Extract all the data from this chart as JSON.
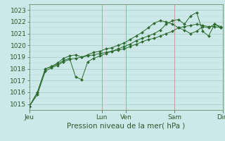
{
  "xlabel": "Pression niveau de la mer( hPa )",
  "bg_color": "#cce8e8",
  "plot_bg_color": "#cce8e8",
  "grid_major_color": "#aacccc",
  "grid_minor_color": "#bbdddd",
  "line_color": "#2d6a2d",
  "marker_color": "#2d6a2d",
  "ymin": 1014.5,
  "ymax": 1023.5,
  "yticks": [
    1015,
    1016,
    1017,
    1018,
    1019,
    1020,
    1021,
    1022,
    1023
  ],
  "day_labels": [
    "Jeu",
    "Lun",
    "Ven",
    "Sam",
    "Dim"
  ],
  "day_positions": [
    0,
    0.375,
    0.5,
    0.75,
    1.0
  ],
  "vline_color": "#cc9999",
  "xlabel_color": "#2d5a2d",
  "tick_color": "#2d5a2d",
  "series1_x": [
    0.0,
    0.042,
    0.083,
    0.115,
    0.146,
    0.177,
    0.208,
    0.24,
    0.271,
    0.302,
    0.333,
    0.365,
    0.396,
    0.427,
    0.458,
    0.49,
    0.521,
    0.552,
    0.583,
    0.615,
    0.646,
    0.677,
    0.708,
    0.74,
    0.771,
    0.802,
    0.833,
    0.865,
    0.896,
    0.927,
    0.958,
    0.99
  ],
  "series1_y": [
    1014.8,
    1015.8,
    1017.8,
    1018.1,
    1018.3,
    1018.6,
    1018.8,
    1018.9,
    1019.0,
    1019.1,
    1019.2,
    1019.3,
    1019.4,
    1019.5,
    1019.6,
    1019.7,
    1019.9,
    1020.1,
    1020.3,
    1020.5,
    1020.6,
    1020.8,
    1021.0,
    1021.2,
    1021.5,
    1021.6,
    1021.7,
    1021.8,
    1021.7,
    1021.6,
    1021.6,
    1021.5
  ],
  "series2_x": [
    0.0,
    0.042,
    0.083,
    0.115,
    0.146,
    0.177,
    0.208,
    0.24,
    0.271,
    0.302,
    0.333,
    0.365,
    0.396,
    0.427,
    0.458,
    0.49,
    0.521,
    0.552,
    0.583,
    0.615,
    0.646,
    0.677,
    0.708,
    0.74,
    0.771,
    0.802,
    0.833,
    0.865,
    0.896,
    0.927,
    0.958,
    0.99
  ],
  "series2_y": [
    1014.8,
    1016.0,
    1018.0,
    1018.2,
    1018.4,
    1018.7,
    1018.9,
    1017.3,
    1017.1,
    1018.6,
    1018.9,
    1019.1,
    1019.3,
    1019.5,
    1019.7,
    1019.9,
    1020.1,
    1020.4,
    1020.6,
    1020.8,
    1021.0,
    1021.3,
    1021.8,
    1022.1,
    1022.2,
    1021.8,
    1022.5,
    1022.8,
    1021.2,
    1020.8,
    1021.8,
    1021.6
  ],
  "series3_x": [
    0.0,
    0.042,
    0.083,
    0.115,
    0.146,
    0.177,
    0.208,
    0.24,
    0.271,
    0.302,
    0.333,
    0.365,
    0.396,
    0.427,
    0.458,
    0.49,
    0.521,
    0.552,
    0.583,
    0.615,
    0.646,
    0.677,
    0.708,
    0.74,
    0.771,
    0.802,
    0.833,
    0.865,
    0.896,
    0.927,
    0.958,
    0.99
  ],
  "series3_y": [
    1014.8,
    1016.0,
    1018.0,
    1018.2,
    1018.5,
    1018.9,
    1019.1,
    1019.2,
    1019.0,
    1019.2,
    1019.4,
    1019.5,
    1019.7,
    1019.8,
    1020.0,
    1020.2,
    1020.5,
    1020.8,
    1021.1,
    1021.5,
    1021.9,
    1022.1,
    1022.0,
    1021.8,
    1021.5,
    1021.3,
    1021.0,
    1021.2,
    1021.6,
    1021.5,
    1021.8,
    1021.5
  ]
}
